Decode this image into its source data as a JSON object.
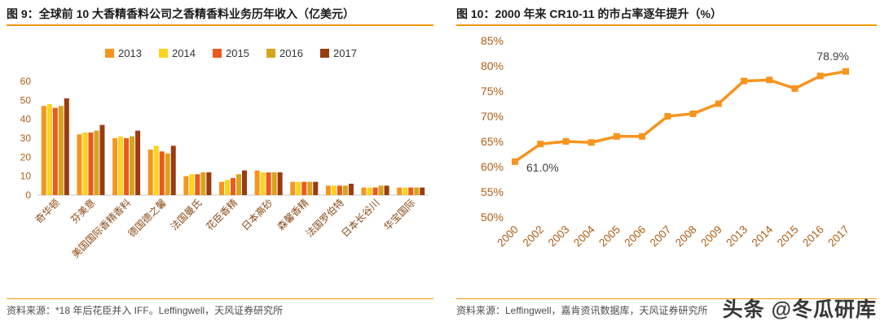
{
  "watermark": "头条 @冬瓜研库",
  "left_panel": {
    "title": "图 9：全球前 10 大香精香料公司之香精香料业务历年收入（亿美元）",
    "source": "资料来源：*18 年后花臣并入 IFF。Leffingwell，天风证券研究所"
  },
  "right_panel": {
    "title": "图 10：2000 年来 CR10-11 的市占率逐年提升（%）",
    "source": "资料来源：Leffingwell，嘉肯资讯数据库，天风证券研究所"
  },
  "colors": {
    "accent_rule": "#f39800",
    "axis_label": "#b05e15",
    "category_label": "#8a4a16",
    "legend_text": "#333333",
    "annotation_text": "#404040",
    "title_text": "#1a1a1a",
    "source_text": "#4d4d4d",
    "baseline": "#c8c8c8"
  },
  "chart_data": [
    {
      "type": "bar",
      "title": "全球前 10 大香精香料公司之香精香料业务历年收入（亿美元）",
      "categories": [
        "奇华顿",
        "芬美意",
        "美国国际香精香料",
        "德国德之馨",
        "法国曼氏",
        "花臣香精",
        "日本高砂",
        "森馨香精",
        "法国罗伯特",
        "日本长谷川",
        "华宝国际"
      ],
      "series": [
        {
          "name": "2013",
          "color": "#f7941e",
          "values": [
            47,
            32,
            30,
            24,
            10,
            7,
            13,
            7,
            5,
            4,
            4
          ]
        },
        {
          "name": "2014",
          "color": "#ffd21c",
          "values": [
            48,
            33,
            31,
            26,
            11,
            8,
            12,
            7,
            5,
            4,
            4
          ]
        },
        {
          "name": "2015",
          "color": "#ea5a1e",
          "values": [
            46,
            33,
            30,
            23,
            11,
            9,
            12,
            7,
            5,
            4,
            4
          ]
        },
        {
          "name": "2016",
          "color": "#d9a31b",
          "values": [
            47,
            34,
            31,
            22,
            12,
            11,
            12,
            7,
            5,
            5,
            4
          ]
        },
        {
          "name": "2017",
          "color": "#9a3c10",
          "values": [
            51,
            37,
            34,
            26,
            12,
            13,
            12,
            7,
            6,
            5,
            4
          ]
        }
      ],
      "ylim": [
        0,
        60
      ],
      "yticks": [
        0,
        10,
        20,
        30,
        40,
        50,
        60
      ],
      "legend_position": "top",
      "grid": false
    },
    {
      "type": "line",
      "title": "2000 年来 CR10-11 的市占率逐年提升（%）",
      "x": [
        "2000",
        "2002",
        "2003",
        "2004",
        "2005",
        "2006",
        "2007",
        "2008",
        "2009",
        "2013",
        "2014",
        "2015",
        "2016",
        "2017"
      ],
      "values": [
        61.0,
        64.5,
        65.0,
        64.8,
        66.0,
        66.0,
        70.0,
        70.5,
        72.5,
        77.0,
        77.2,
        75.5,
        78.0,
        78.9
      ],
      "ylim": [
        50,
        85
      ],
      "yticks": [
        "50%",
        "55%",
        "60%",
        "65%",
        "70%",
        "75%",
        "80%",
        "85%"
      ],
      "color": "#f7941e",
      "marker": "square",
      "annotations": [
        {
          "x": "2000",
          "text": "61.0%",
          "position": "right"
        },
        {
          "x": "2017",
          "text": "78.9%",
          "position": "above"
        }
      ],
      "grid": false,
      "legend_position": "none"
    }
  ]
}
